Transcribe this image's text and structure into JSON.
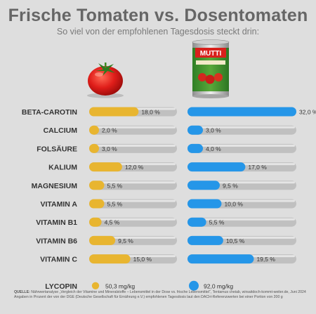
{
  "header": {
    "title": "Frische Tomaten vs. Dosentomaten",
    "subtitle": "So viel von der empfohlenen Tagesdosis steckt drin:"
  },
  "illustrations": {
    "fresh": "tomato",
    "canned": "tomato-can",
    "can_brand": "MUTTI"
  },
  "colors": {
    "fresh": "#e8b530",
    "canned": "#2596e8",
    "track": "#c0c0c0",
    "track_highlight": "#eeeeee",
    "label": "#333333",
    "background": "#dedede"
  },
  "chart_data": {
    "type": "bar",
    "unit": "%",
    "categories": [
      "BETA-CAROTIN",
      "CALCIUM",
      "FOLSÄURE",
      "KALIUM",
      "MAGNESIUM",
      "VITAMIN A",
      "VITAMIN B1",
      "VITAMIN B6",
      "VITAMIN C"
    ],
    "xlim": [
      0,
      32
    ],
    "series": [
      {
        "key": "fresh",
        "values": [
          18.0,
          2.0,
          3.0,
          12.0,
          5.5,
          5.5,
          4.5,
          9.5,
          15.0
        ],
        "labels": [
          "18,0 %",
          "2,0 %",
          "3,0 %",
          "12,0 %",
          "5,5 %",
          "5,5 %",
          "4,5 %",
          "9,5 %",
          "15,0 %"
        ]
      },
      {
        "key": "canned",
        "values": [
          32.0,
          3.0,
          4.0,
          17.0,
          9.5,
          10.0,
          5.5,
          10.5,
          19.5
        ],
        "labels": [
          "32,0 %",
          "3,0 %",
          "4,0 %",
          "17,0 %",
          "9,5 %",
          "10,0 %",
          "5,5 %",
          "10,5 %",
          "19,5 %"
        ]
      }
    ],
    "extra_row": {
      "label": "LYCOPIN",
      "unit": "mg/kg",
      "fresh": {
        "value": 50.3,
        "label": "50,3 mg/kg"
      },
      "canned": {
        "value": 92.0,
        "label": "92,0 mg/kg"
      }
    }
  },
  "footer": {
    "source_label": "QUELLE:",
    "source_text": "Nährwertanalyse „Vergleich der Vitamine und Mineralstoffe – Lebensmittel in der Dose vs. frische Lebensmittel“, Tentamus cheiab, wirsaitdoch-kommt-weiter.de, Juni 2024",
    "note": "Angaben in Prozent der von der DGE (Deutsche Gesellschaft für Ernährung e.V.) empfohlenen Tagesdosis laut den DACH-Referenzwerten bei einer Portion von 200 g"
  }
}
